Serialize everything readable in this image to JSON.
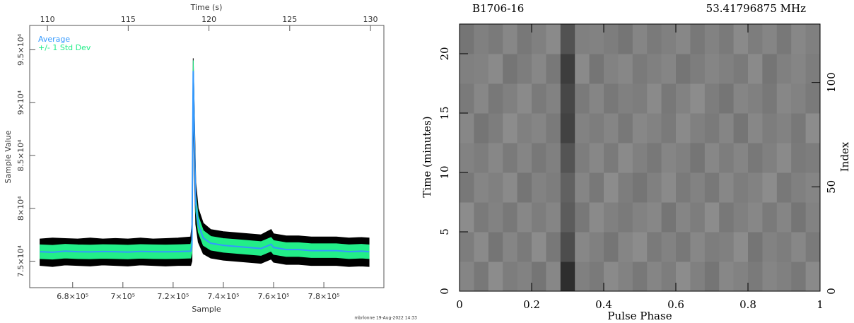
{
  "chart_data": [
    {
      "type": "line",
      "xlabel": "Sample",
      "ylabel": "Sample Value",
      "x2label": "Time (s)",
      "footer": "mbrlonne 19-Aug-2022 14:33",
      "x": [
        667000,
        672000,
        677000,
        682000,
        687000,
        692000,
        697000,
        702000,
        707000,
        712000,
        717000,
        722000,
        727000,
        727500,
        728000,
        728500,
        729000,
        730000,
        732000,
        735000,
        740000,
        745000,
        750000,
        755000,
        759000,
        760000,
        765000,
        770000,
        775000,
        780000,
        785000,
        790000,
        795000,
        798000
      ],
      "series": [
        {
          "name": "Average",
          "color": "#3399ff",
          "values": [
            75900,
            75850,
            75950,
            75900,
            75880,
            75920,
            75900,
            75870,
            75930,
            75900,
            75890,
            75910,
            75950,
            76500,
            93000,
            86000,
            80500,
            78500,
            77200,
            76700,
            76500,
            76400,
            76300,
            76200,
            76600,
            76300,
            76100,
            76100,
            76000,
            76000,
            76000,
            75900,
            75950,
            75900
          ]
        },
        {
          "name": "+/- 1 Std Dev",
          "color": "#22ee88",
          "values": [
            650,
            650,
            650,
            650,
            650,
            650,
            650,
            650,
            650,
            650,
            650,
            650,
            650,
            700,
            1000,
            900,
            800,
            750,
            700,
            650,
            650,
            650,
            650,
            650,
            650,
            650,
            650,
            650,
            650,
            650,
            650,
            650,
            650,
            650
          ]
        }
      ],
      "envelope": {
        "color": "#000000",
        "upper": [
          77100,
          77200,
          77150,
          77100,
          77200,
          77100,
          77150,
          77100,
          77200,
          77100,
          77150,
          77200,
          77300,
          78500,
          94200,
          88500,
          82500,
          80000,
          78600,
          78000,
          77800,
          77700,
          77600,
          77500,
          78000,
          77600,
          77400,
          77400,
          77300,
          77300,
          77300,
          77200,
          77250,
          77200
        ],
        "lower": [
          74600,
          74500,
          74650,
          74600,
          74550,
          74650,
          74600,
          74550,
          74650,
          74600,
          74550,
          74600,
          74600,
          75000,
          89000,
          83000,
          78500,
          76800,
          75700,
          75300,
          75100,
          75000,
          74900,
          74800,
          75200,
          74900,
          74700,
          74700,
          74600,
          74600,
          74600,
          74500,
          74550,
          74500
        ]
      },
      "xlim": [
        662900,
        803900
      ],
      "ylim": [
        72500,
        97300
      ],
      "x2lim": [
        108.9,
        130.83
      ],
      "xticks": [
        {
          "value": 680000,
          "label": "6.8×10⁵"
        },
        {
          "value": 700000,
          "label": "7×10⁵"
        },
        {
          "value": 720000,
          "label": "7.2×10⁵"
        },
        {
          "value": 740000,
          "label": "7.4×10⁵"
        },
        {
          "value": 760000,
          "label": "7.6×10⁵"
        },
        {
          "value": 780000,
          "label": "7.8×10⁵"
        }
      ],
      "yticks": [
        {
          "value": 75000,
          "label": "7.5×10⁴"
        },
        {
          "value": 80000,
          "label": "8×10⁴"
        },
        {
          "value": 85000,
          "label": "8.5×10⁴"
        },
        {
          "value": 90000,
          "label": "9×10⁴"
        },
        {
          "value": 95000,
          "label": "9.5×10⁴"
        }
      ],
      "x2ticks": [
        110,
        115,
        120,
        125,
        130
      ]
    },
    {
      "type": "heatmap",
      "title_left": "B1706-16",
      "title_right": "53.41796875 MHz",
      "xlabel": "Pulse Phase",
      "ylabel": "Time (minutes)",
      "y2label": "Index",
      "xlim": [
        0,
        1
      ],
      "ylim": [
        0,
        22.5
      ],
      "y2lim": [
        0,
        128
      ],
      "xticks": [
        0,
        0.2,
        0.4,
        0.6,
        0.8,
        1
      ],
      "yticks": [
        0,
        5,
        10,
        15,
        20
      ],
      "y2ticks": [
        0,
        50,
        100
      ],
      "z": [
        [
          0.52,
          0.47,
          0.55,
          0.49,
          0.51,
          0.46,
          0.53,
          0.18,
          0.5,
          0.48,
          0.54,
          0.51,
          0.47,
          0.52,
          0.49,
          0.55,
          0.5,
          0.46,
          0.53,
          0.51,
          0.48,
          0.52,
          0.5,
          0.47,
          0.54
        ],
        [
          0.49,
          0.54,
          0.46,
          0.52,
          0.48,
          0.55,
          0.47,
          0.3,
          0.53,
          0.5,
          0.46,
          0.52,
          0.55,
          0.48,
          0.51,
          0.47,
          0.53,
          0.49,
          0.5,
          0.55,
          0.46,
          0.51,
          0.49,
          0.53,
          0.48
        ],
        [
          0.55,
          0.48,
          0.51,
          0.47,
          0.53,
          0.49,
          0.52,
          0.36,
          0.47,
          0.54,
          0.5,
          0.48,
          0.51,
          0.53,
          0.46,
          0.52,
          0.49,
          0.55,
          0.47,
          0.5,
          0.53,
          0.48,
          0.52,
          0.46,
          0.51
        ],
        [
          0.47,
          0.52,
          0.5,
          0.54,
          0.46,
          0.51,
          0.49,
          0.38,
          0.52,
          0.47,
          0.55,
          0.49,
          0.46,
          0.5,
          0.54,
          0.48,
          0.51,
          0.47,
          0.53,
          0.49,
          0.51,
          0.55,
          0.47,
          0.5,
          0.52
        ],
        [
          0.51,
          0.49,
          0.53,
          0.48,
          0.52,
          0.47,
          0.5,
          0.33,
          0.49,
          0.53,
          0.48,
          0.54,
          0.5,
          0.47,
          0.52,
          0.5,
          0.46,
          0.53,
          0.49,
          0.52,
          0.47,
          0.5,
          0.54,
          0.48,
          0.49
        ],
        [
          0.53,
          0.46,
          0.49,
          0.55,
          0.5,
          0.52,
          0.48,
          0.26,
          0.51,
          0.49,
          0.52,
          0.47,
          0.53,
          0.51,
          0.48,
          0.54,
          0.5,
          0.48,
          0.52,
          0.46,
          0.53,
          0.49,
          0.51,
          0.47,
          0.55
        ],
        [
          0.48,
          0.53,
          0.47,
          0.5,
          0.54,
          0.48,
          0.51,
          0.28,
          0.48,
          0.52,
          0.47,
          0.5,
          0.49,
          0.54,
          0.47,
          0.51,
          0.55,
          0.49,
          0.46,
          0.52,
          0.5,
          0.47,
          0.53,
          0.51,
          0.48
        ],
        [
          0.5,
          0.51,
          0.54,
          0.46,
          0.49,
          0.53,
          0.47,
          0.24,
          0.54,
          0.46,
          0.51,
          0.53,
          0.48,
          0.5,
          0.52,
          0.46,
          0.49,
          0.52,
          0.5,
          0.48,
          0.54,
          0.46,
          0.5,
          0.52,
          0.49
        ],
        [
          0.46,
          0.5,
          0.48,
          0.53,
          0.47,
          0.5,
          0.54,
          0.32,
          0.5,
          0.51,
          0.49,
          0.46,
          0.52,
          0.48,
          0.5,
          0.53,
          0.47,
          0.51,
          0.48,
          0.54,
          0.49,
          0.52,
          0.47,
          0.53,
          0.5
        ]
      ]
    }
  ]
}
